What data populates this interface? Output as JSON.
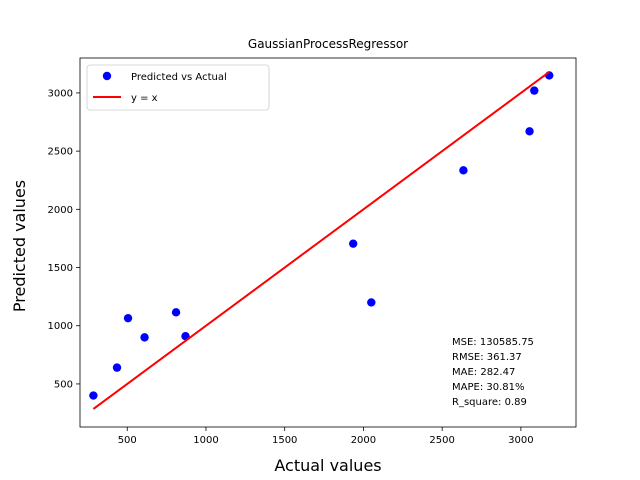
{
  "chart_data": {
    "type": "scatter",
    "title": "GaussianProcessRegressor",
    "xlabel": "Actual values",
    "ylabel": "Predicted values",
    "xlim": [
      200,
      3350
    ],
    "ylim": [
      130,
      3300
    ],
    "xticks": [
      500,
      1000,
      1500,
      2000,
      2500,
      3000
    ],
    "yticks": [
      500,
      1000,
      1500,
      2000,
      2500,
      3000
    ],
    "grid": false,
    "legend_position": "upper-left",
    "series": [
      {
        "name": "Predicted vs Actual",
        "kind": "scatter",
        "color": "#0000ff",
        "points": [
          {
            "x": 285,
            "y": 400
          },
          {
            "x": 435,
            "y": 640
          },
          {
            "x": 505,
            "y": 1065
          },
          {
            "x": 610,
            "y": 900
          },
          {
            "x": 810,
            "y": 1115
          },
          {
            "x": 870,
            "y": 910
          },
          {
            "x": 1935,
            "y": 1705
          },
          {
            "x": 2050,
            "y": 1200
          },
          {
            "x": 2635,
            "y": 2335
          },
          {
            "x": 3055,
            "y": 2670
          },
          {
            "x": 3085,
            "y": 3020
          },
          {
            "x": 3180,
            "y": 3150
          }
        ]
      },
      {
        "name": "y = x",
        "kind": "line",
        "color": "#ff0000",
        "points": [
          {
            "x": 285,
            "y": 285
          },
          {
            "x": 3180,
            "y": 3180
          }
        ]
      }
    ],
    "annotations": [
      "MSE: 130585.75",
      "RMSE: 361.37",
      "MAE: 282.47",
      "MAPE: 30.81%",
      "R_square: 0.89"
    ]
  }
}
